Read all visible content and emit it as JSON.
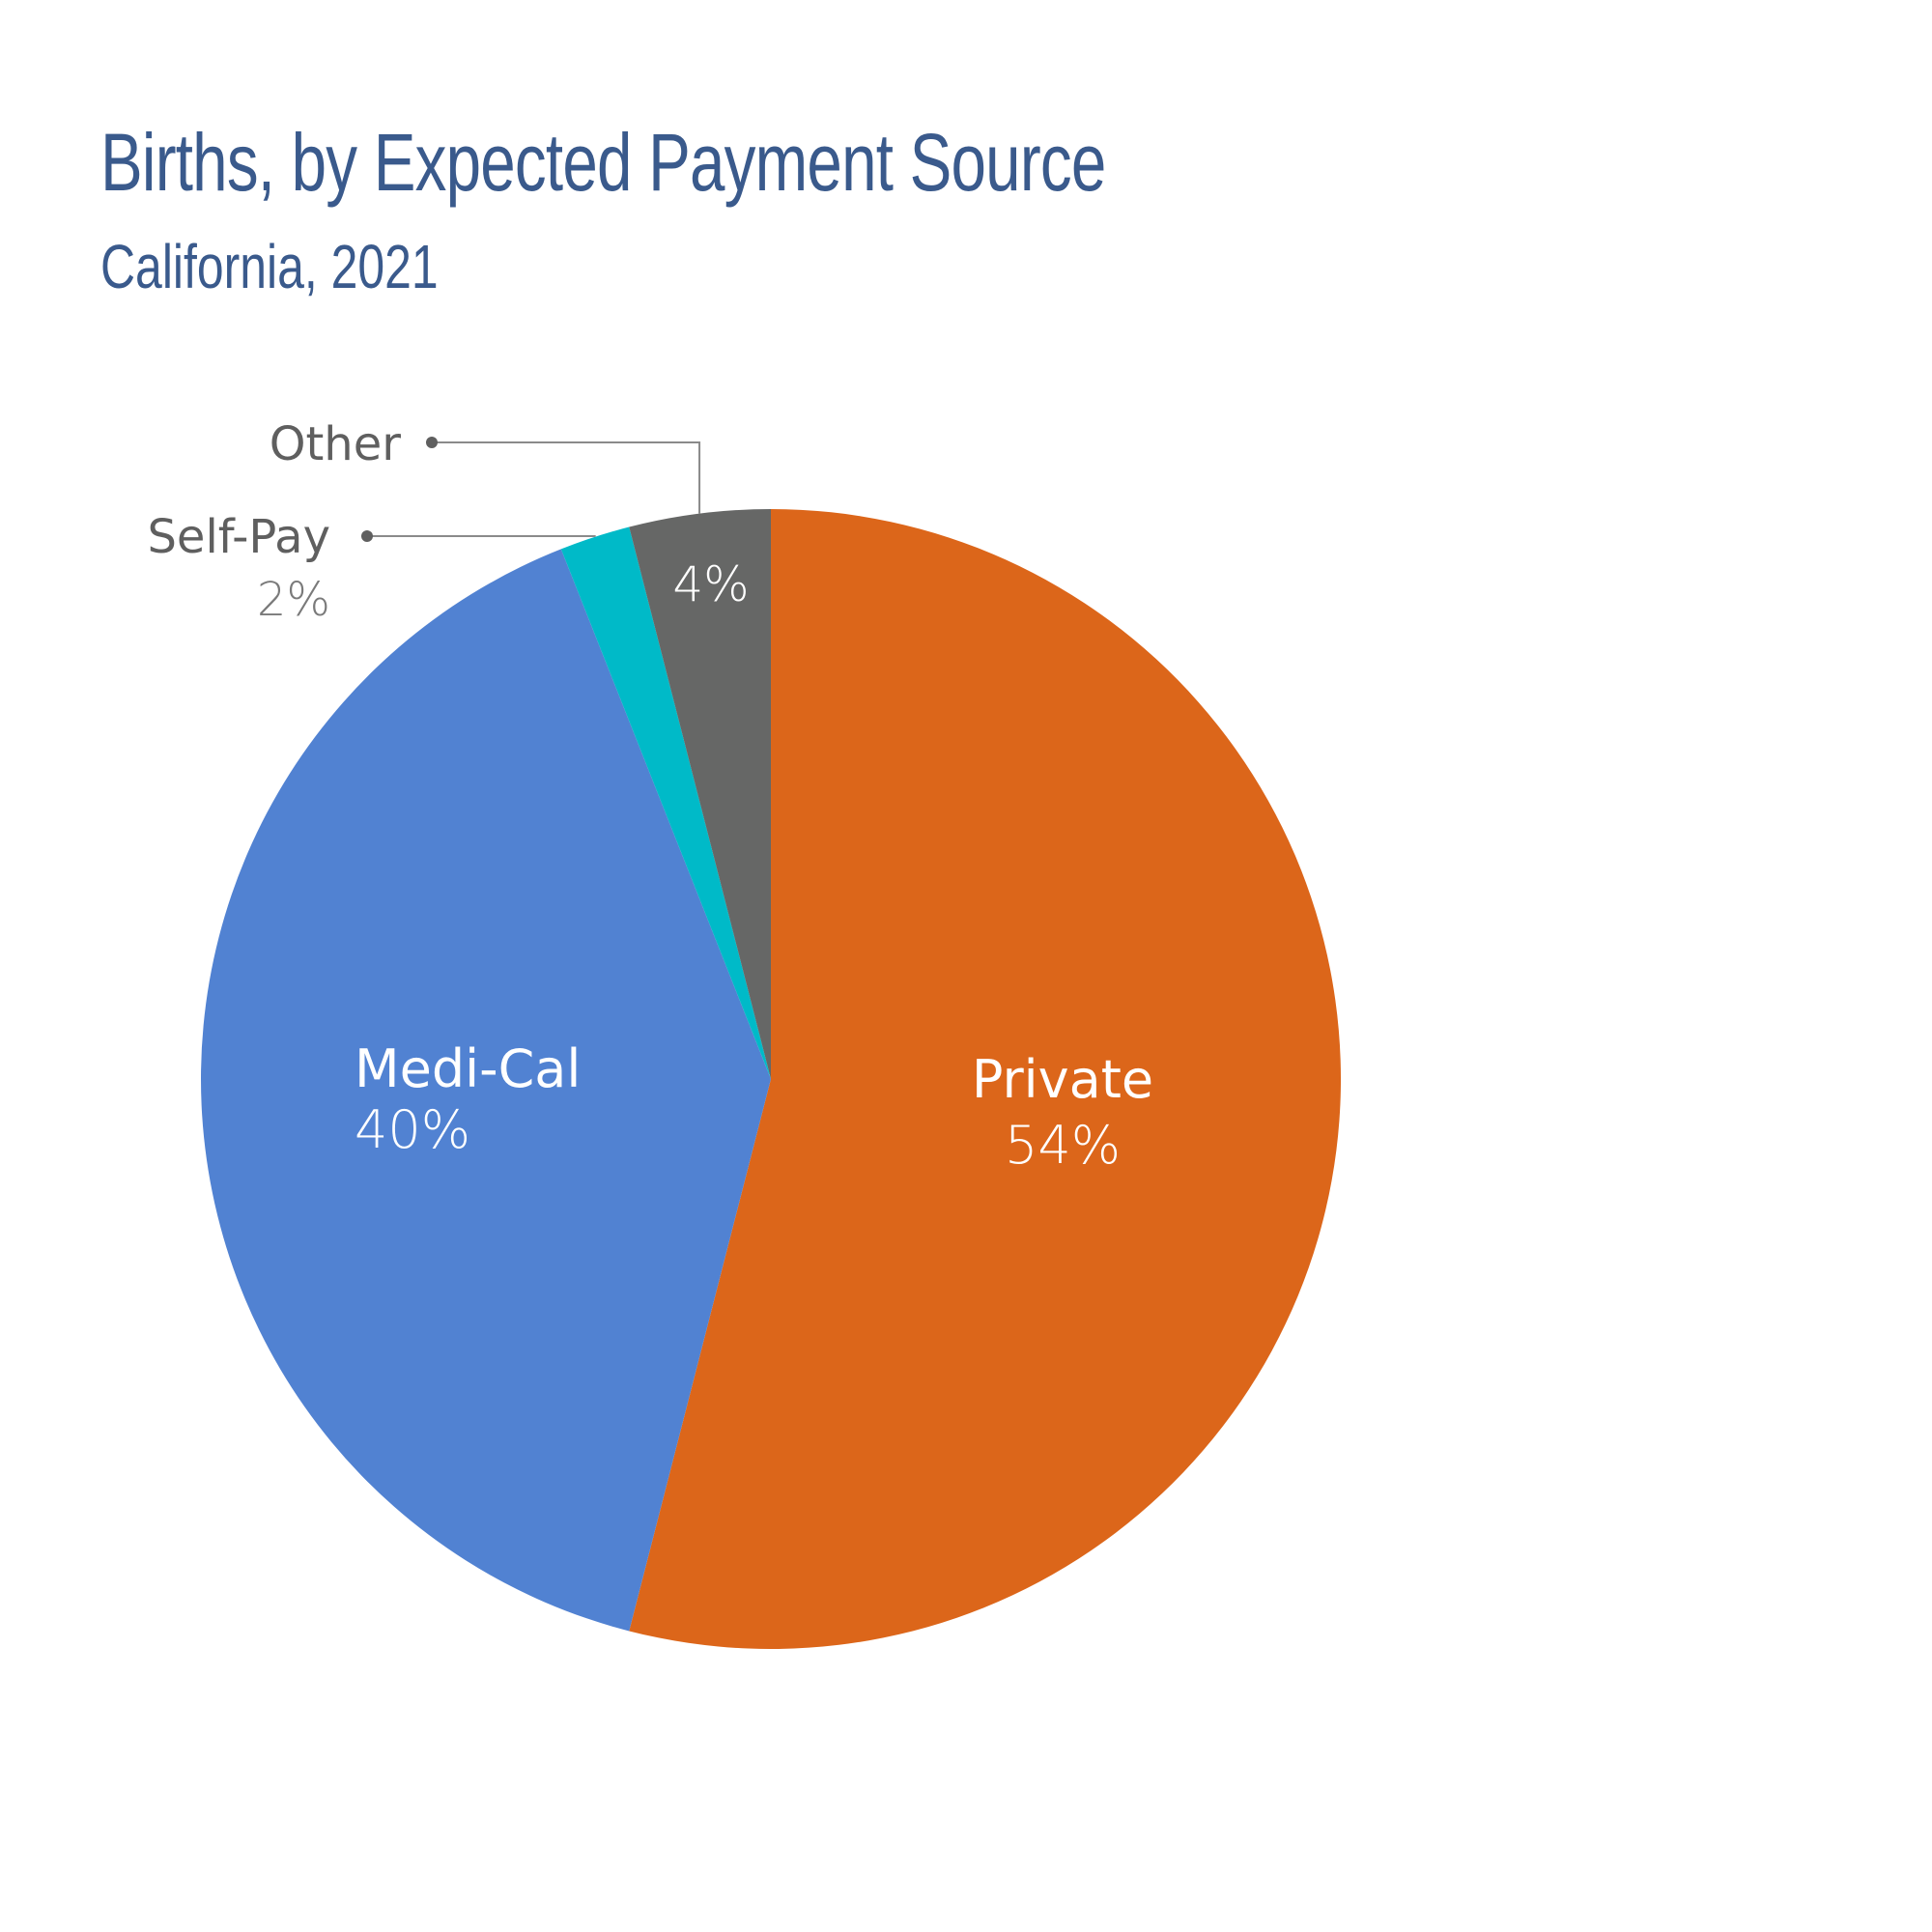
{
  "title": "Births, by Expected Payment Source",
  "subtitle": "California, 2021",
  "chart_data": {
    "type": "pie",
    "title": "Births, by Expected Payment Source",
    "subtitle": "California, 2021",
    "slices": [
      {
        "label": "Private",
        "value": 54,
        "value_label": "54%",
        "color": "#dc661a",
        "label_color": "#ffffff"
      },
      {
        "label": "Medi-Cal",
        "value": 40,
        "value_label": "40%",
        "color": "#5182d2",
        "label_color": "#ffffff"
      },
      {
        "label": "Self-Pay",
        "value": 2,
        "value_label": "2%",
        "color": "#00bac8",
        "label_color": "#5f5f5f"
      },
      {
        "label": "Other",
        "value": 4,
        "value_label": "4%",
        "color": "#666766",
        "label_color": "#5f5f5f"
      }
    ],
    "start_angle": "12 o'clock",
    "direction": "clockwise",
    "legend": "none"
  }
}
